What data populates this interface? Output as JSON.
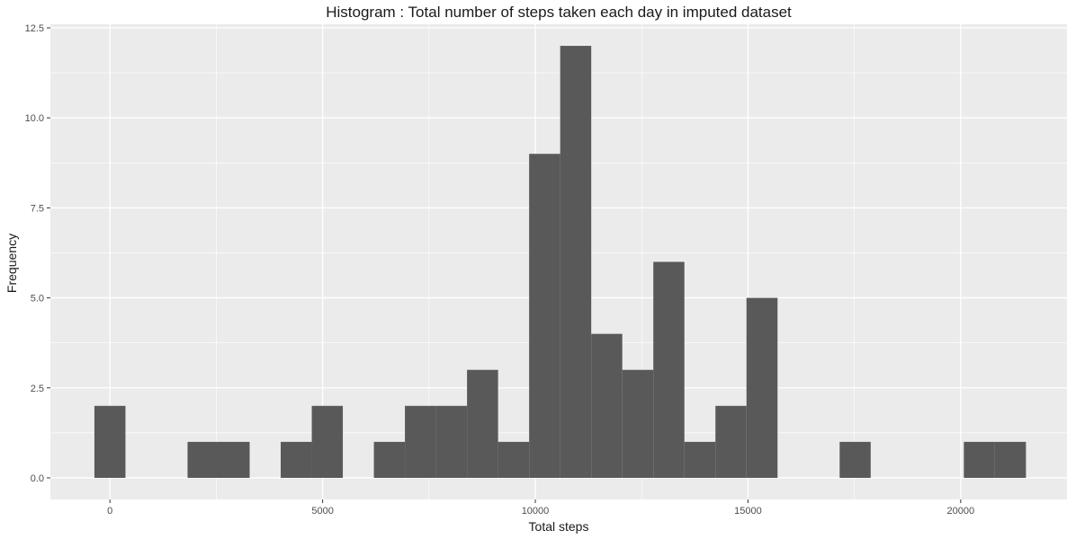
{
  "chart_data": {
    "type": "bar",
    "subtype": "histogram",
    "title": "Histogram : Total number of steps taken each day in imputed dataset",
    "xlabel": "Total steps",
    "ylabel": "Frequency",
    "x_ticks": [
      "0",
      "5000",
      "10000",
      "15000",
      "20000"
    ],
    "y_ticks": [
      "0.0",
      "2.5",
      "5.0",
      "7.5",
      "10.0",
      "12.5"
    ],
    "xlim": [
      -1400,
      22500
    ],
    "ylim": [
      -0.6,
      12.6
    ],
    "grid": true,
    "bin_width": 730,
    "bins": [
      {
        "x": 0,
        "count": 2
      },
      {
        "x": 2190,
        "count": 1
      },
      {
        "x": 2920,
        "count": 1
      },
      {
        "x": 4380,
        "count": 1
      },
      {
        "x": 5110,
        "count": 2
      },
      {
        "x": 6570,
        "count": 1
      },
      {
        "x": 7300,
        "count": 2
      },
      {
        "x": 8030,
        "count": 2
      },
      {
        "x": 8760,
        "count": 3
      },
      {
        "x": 9490,
        "count": 1
      },
      {
        "x": 10220,
        "count": 9
      },
      {
        "x": 10950,
        "count": 12
      },
      {
        "x": 11680,
        "count": 4
      },
      {
        "x": 12410,
        "count": 3
      },
      {
        "x": 13140,
        "count": 6
      },
      {
        "x": 13870,
        "count": 1
      },
      {
        "x": 14600,
        "count": 2
      },
      {
        "x": 15330,
        "count": 5
      },
      {
        "x": 17520,
        "count": 1
      },
      {
        "x": 20440,
        "count": 1
      },
      {
        "x": 21170,
        "count": 1
      }
    ],
    "colors": {
      "panel": "#ebebeb",
      "grid_major": "#ffffff",
      "bar": "#595959",
      "tick": "#333333"
    }
  }
}
